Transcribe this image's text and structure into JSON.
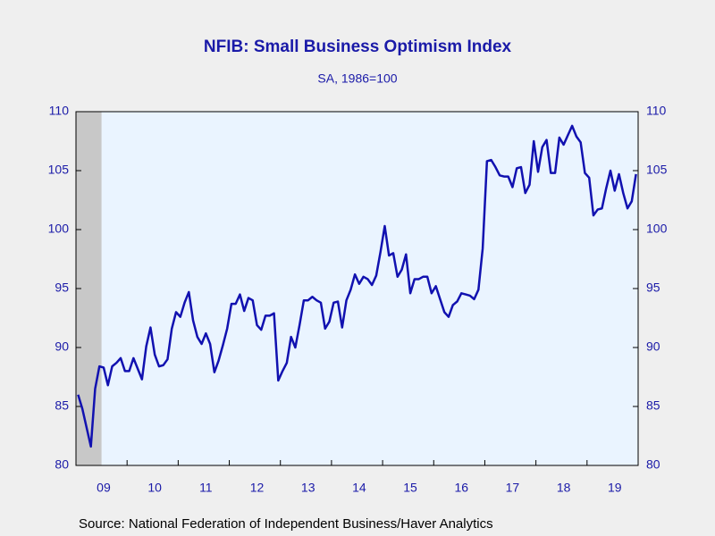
{
  "chart_data": {
    "type": "line",
    "title": "NFIB: Small Business Optimism Index",
    "subtitle": "SA, 1986=100",
    "source": "Source:  National Federation of Independent Business/Haver Analytics",
    "categories": [
      null,
      null,
      null,
      null,
      null,
      null,
      "09",
      null,
      null,
      null,
      null,
      null,
      null,
      null,
      null,
      null,
      null,
      null,
      "10",
      null,
      null,
      null,
      null,
      null,
      null,
      null,
      null,
      null,
      null,
      null,
      "11",
      null,
      null,
      null,
      null,
      null,
      null,
      null,
      null,
      null,
      null,
      null,
      "12",
      null,
      null,
      null,
      null,
      null,
      null,
      null,
      null,
      null,
      null,
      null,
      "13",
      null,
      null,
      null,
      null,
      null,
      null,
      null,
      null,
      null,
      null,
      null,
      "14",
      null,
      null,
      null,
      null,
      null,
      null,
      null,
      null,
      null,
      null,
      null,
      "15",
      null,
      null,
      null,
      null,
      null,
      null,
      null,
      null,
      null,
      null,
      null,
      "16",
      null,
      null,
      null,
      null,
      null,
      null,
      null,
      null,
      null,
      null,
      null,
      "17",
      null,
      null,
      null,
      null,
      null,
      null,
      null,
      null,
      null,
      null,
      null,
      "18",
      null,
      null,
      null,
      null,
      null,
      null,
      null,
      null,
      null,
      null,
      null,
      "19",
      null,
      null,
      null,
      null,
      null
    ],
    "values": [
      86.0,
      84.8,
      83.2,
      81.6,
      86.5,
      88.4,
      88.3,
      86.8,
      88.4,
      88.7,
      89.1,
      88.0,
      88.0,
      89.1,
      88.2,
      87.3,
      90.1,
      91.7,
      89.4,
      88.4,
      88.5,
      89.0,
      91.6,
      93.0,
      92.6,
      93.8,
      94.7,
      92.3,
      90.9,
      90.3,
      91.2,
      90.3,
      87.9,
      88.9,
      90.2,
      91.6,
      93.7,
      93.7,
      94.5,
      93.1,
      94.2,
      94.0,
      91.9,
      91.5,
      92.7,
      92.7,
      92.9,
      87.2,
      88.0,
      88.7,
      90.9,
      90.0,
      91.9,
      94.0,
      94.0,
      94.3,
      94.0,
      93.8,
      91.6,
      92.2,
      93.8,
      93.9,
      91.7,
      94.0,
      94.9,
      96.2,
      95.4,
      96.0,
      95.8,
      95.3,
      96.1,
      98.1,
      100.3,
      97.8,
      98.0,
      96.0,
      96.6,
      97.9,
      94.6,
      95.8,
      95.8,
      96.0,
      96.0,
      94.6,
      95.2,
      94.1,
      93.0,
      92.6,
      93.6,
      93.9,
      94.6,
      94.5,
      94.4,
      94.1,
      94.9,
      98.4,
      105.8,
      105.9,
      105.3,
      104.6,
      104.5,
      104.5,
      103.6,
      105.2,
      105.3,
      103.1,
      103.8,
      107.5,
      104.9,
      107.0,
      107.6,
      104.8,
      104.8,
      107.8,
      107.2,
      108.0,
      108.8,
      107.9,
      107.4,
      104.8,
      104.4,
      101.2,
      101.7,
      101.8,
      103.5,
      105.0,
      103.3,
      104.7,
      103.1,
      101.8,
      102.4,
      104.7
    ],
    "color": "#1111b0",
    "ylim": [
      80,
      110
    ],
    "yticks": [
      80,
      85,
      90,
      95,
      100,
      105,
      110
    ],
    "y2lim": [
      80,
      110
    ],
    "y2ticks": [
      80,
      85,
      90,
      95,
      100,
      105,
      110
    ],
    "shading": {
      "start": 0,
      "end": 5,
      "color": "#c8c8c8"
    }
  }
}
